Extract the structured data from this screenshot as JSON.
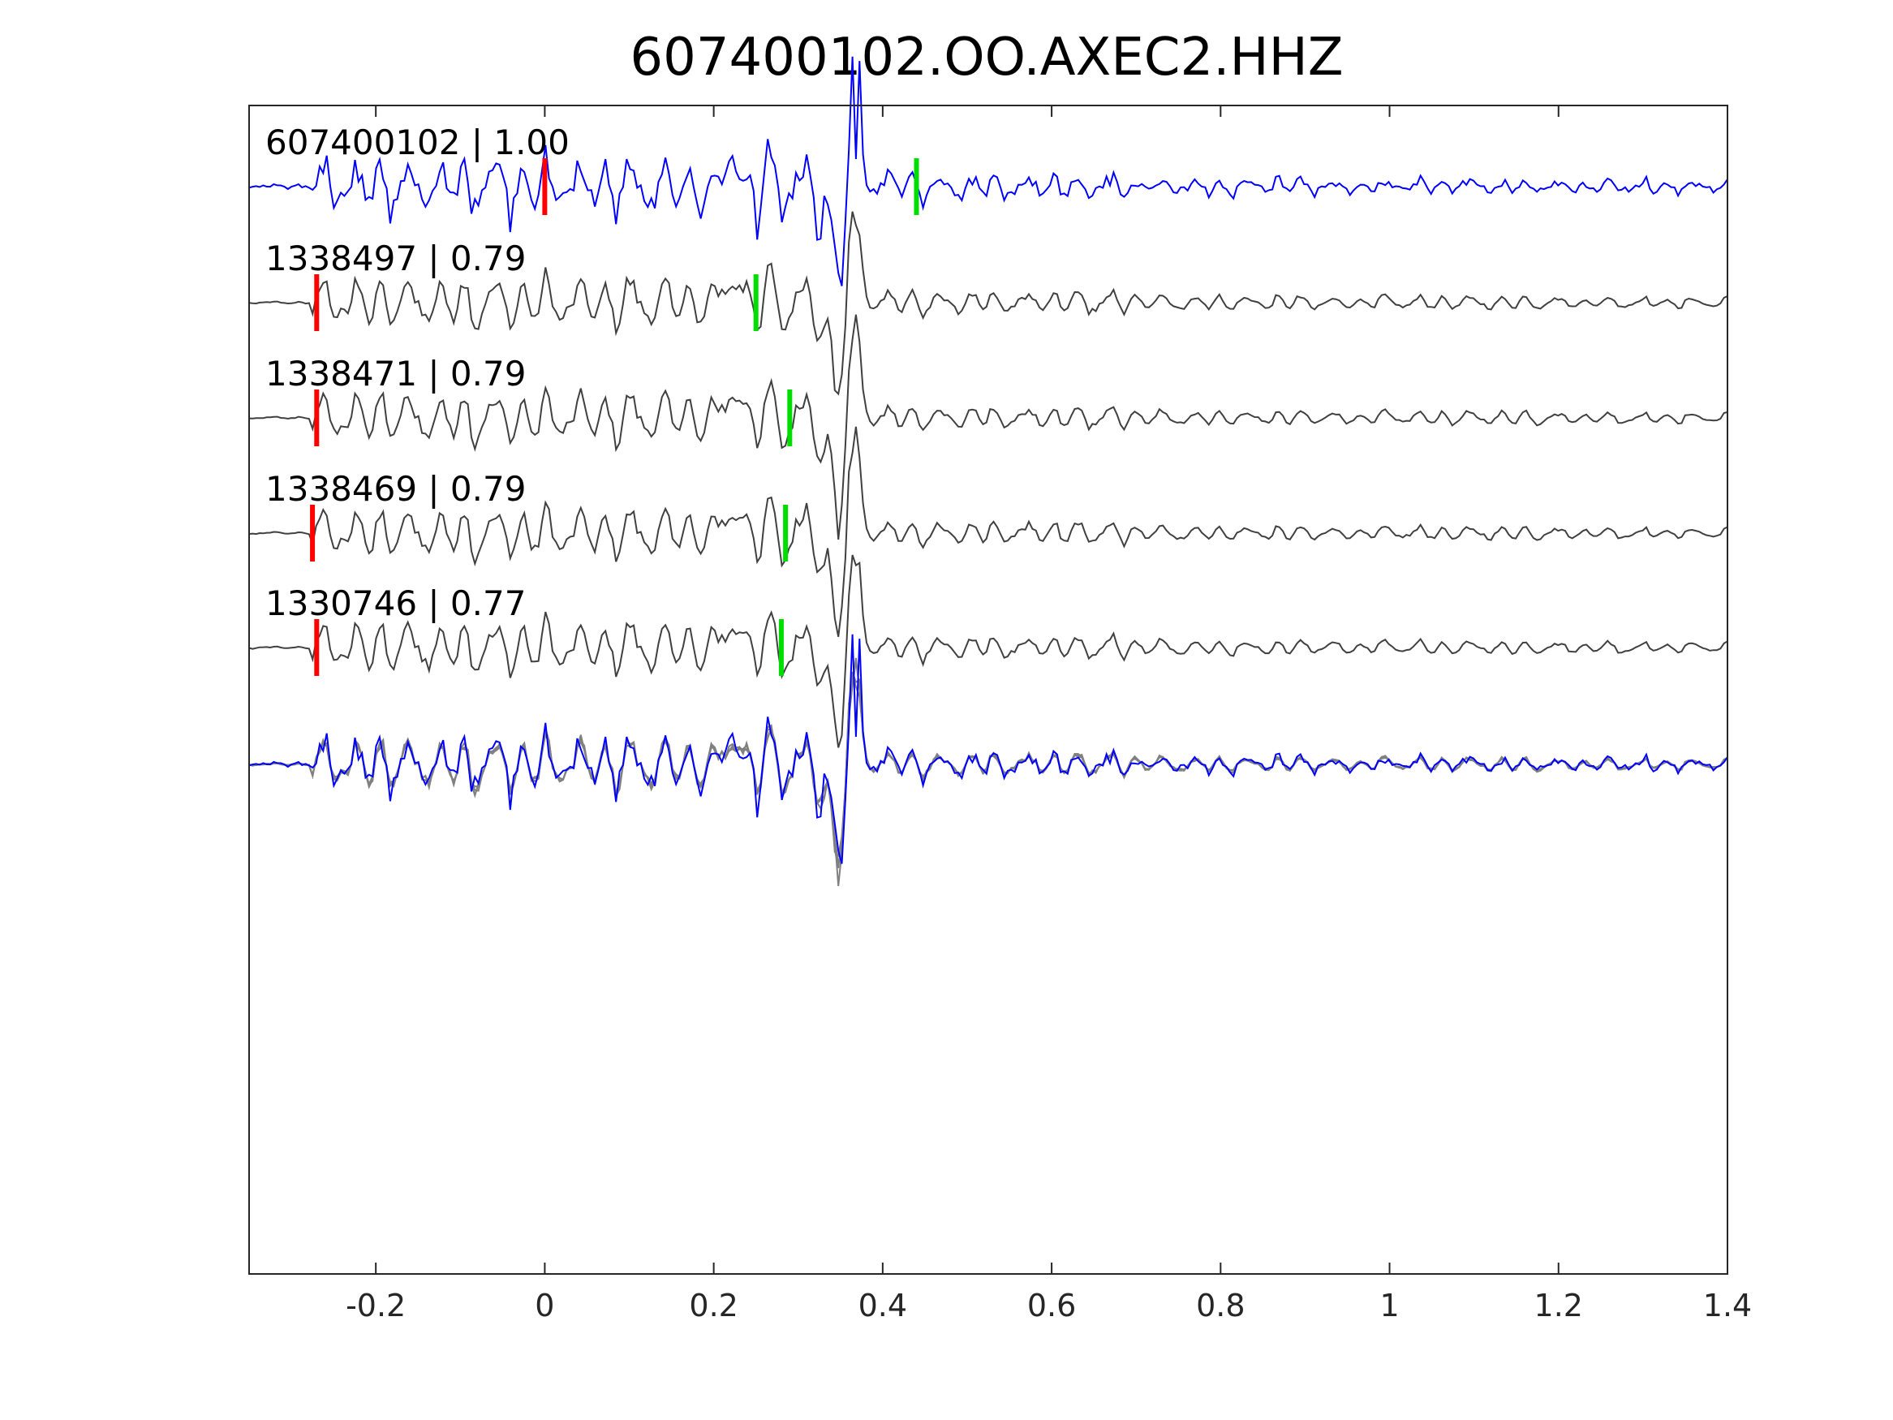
{
  "chart_data": {
    "type": "line",
    "title": "607400102.OO.AXEC2.HHZ",
    "xlabel": "",
    "ylabel": "",
    "xlim": [
      -0.35,
      1.4
    ],
    "x_ticks": [
      -0.2,
      0,
      0.2,
      0.4,
      0.6,
      0.8,
      1,
      1.2,
      1.4
    ],
    "x_tick_labels": [
      "-0.2",
      "0",
      "0.2",
      "0.4",
      "0.6",
      "0.8",
      "1",
      "1.2",
      "1.4"
    ],
    "grid": false,
    "colors": {
      "master": "#0000ff",
      "neighbor": "#404040",
      "overlay_neighbor": "#808080",
      "p_pick": "#ff0000",
      "s_pick": "#00dd00"
    },
    "series": [
      {
        "id": "607400102",
        "label": "607400102 | 1.00",
        "role": "master",
        "p_pick": 0.0,
        "s_pick": 0.44
      },
      {
        "id": "1338497",
        "label": "1338497 | 0.79",
        "role": "neighbor",
        "p_pick": -0.27,
        "s_pick": 0.25
      },
      {
        "id": "1338471",
        "label": "1338471 | 0.79",
        "role": "neighbor",
        "p_pick": -0.27,
        "s_pick": 0.29
      },
      {
        "id": "1338469",
        "label": "1338469 | 0.79",
        "role": "neighbor",
        "p_pick": -0.275,
        "s_pick": 0.285
      },
      {
        "id": "1330746",
        "label": "1330746 | 0.77",
        "role": "neighbor",
        "p_pick": -0.27,
        "s_pick": 0.28
      }
    ],
    "overlay": {
      "description_visible": false
    }
  }
}
